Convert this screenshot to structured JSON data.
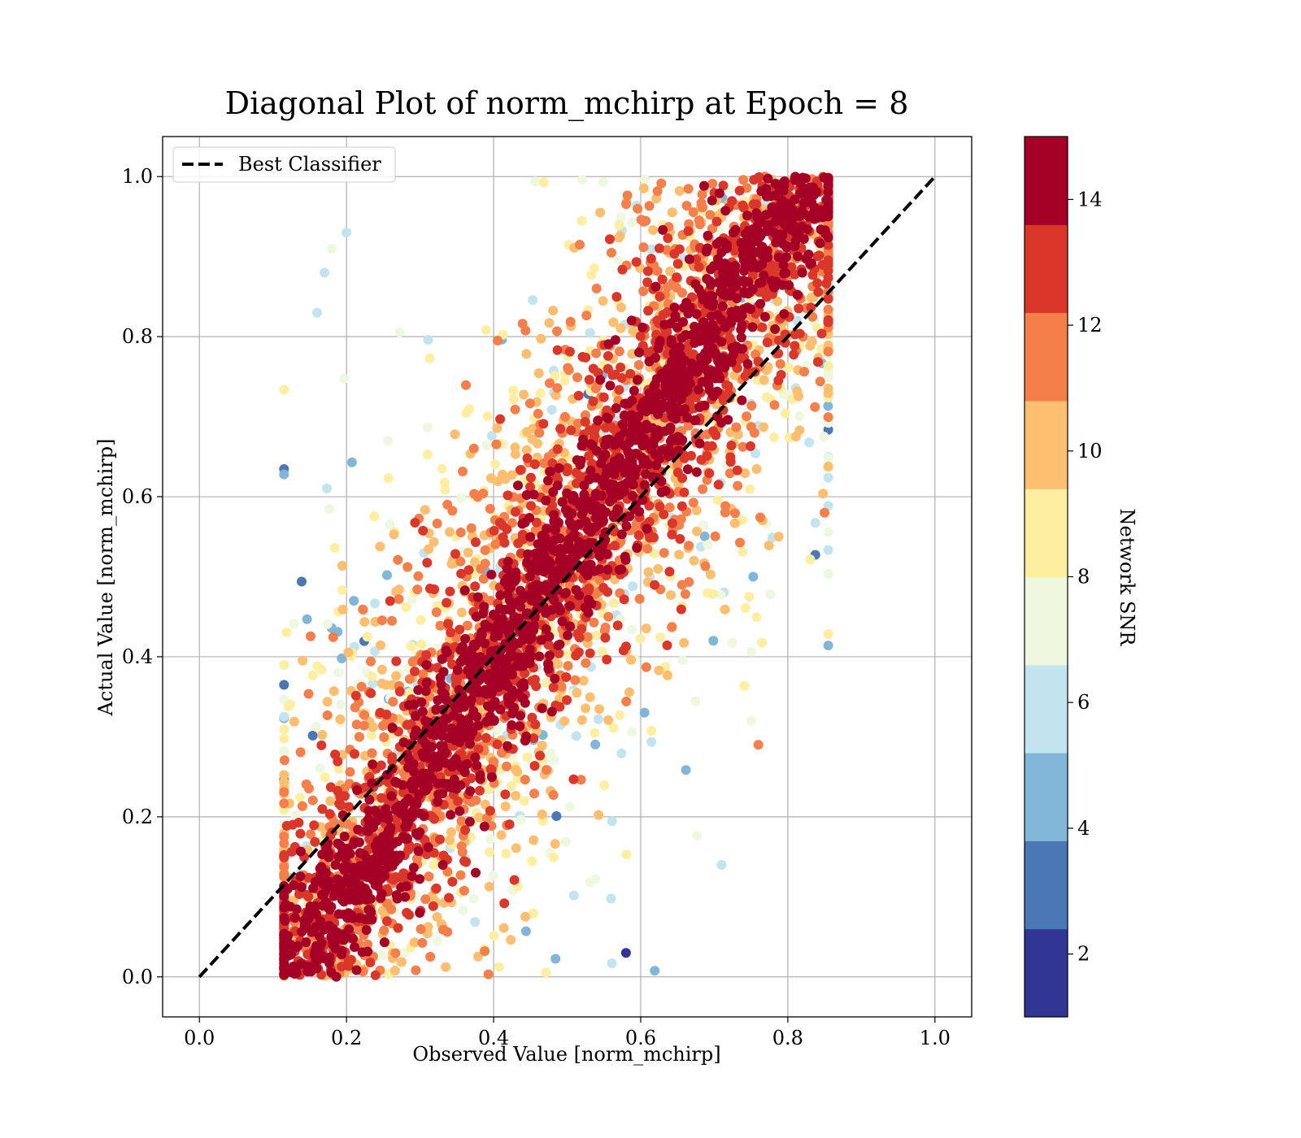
{
  "chart_data": {
    "type": "scatter",
    "title": "Diagonal Plot of norm_mchirp at Epoch = 8",
    "xlabel": "Observed Value [norm_mchirp]",
    "ylabel": "Actual Value [norm_mchirp]",
    "xlim": [
      -0.05,
      1.05
    ],
    "ylim": [
      -0.05,
      1.05
    ],
    "xticks": [
      0.0,
      0.2,
      0.4,
      0.6,
      0.8,
      1.0
    ],
    "yticks": [
      0.0,
      0.2,
      0.4,
      0.6,
      0.8,
      1.0
    ],
    "xtick_labels": [
      "0.0",
      "0.2",
      "0.4",
      "0.6",
      "0.8",
      "1.0"
    ],
    "ytick_labels": [
      "0.0",
      "0.2",
      "0.4",
      "0.6",
      "0.8",
      "1.0"
    ],
    "grid": true,
    "legend": {
      "position": "top-left",
      "entries": [
        "Best Classifier"
      ]
    },
    "reference_line": {
      "name": "Best Classifier",
      "style": "dashed",
      "color": "#000000",
      "x": [
        0.0,
        1.0
      ],
      "y": [
        0.0,
        1.0
      ]
    },
    "colorbar": {
      "label": "Network SNR",
      "range": [
        1,
        15
      ],
      "ticks": [
        2,
        4,
        6,
        8,
        10,
        12,
        14
      ],
      "tick_labels": [
        "2",
        "4",
        "6",
        "8",
        "10",
        "12",
        "14"
      ],
      "bins": 10,
      "colors": [
        "#313695",
        "#4a78b6",
        "#82b6d8",
        "#c1e4ee",
        "#edf8df",
        "#feeea2",
        "#fdbe6f",
        "#f57f4b",
        "#da372a",
        "#a50026"
      ]
    },
    "series": {
      "name": "samples",
      "color_variable": "Network SNR",
      "description": "Dense cloud of points around the diagonal; high-SNR points (dark red) cluster tightly along y = x, lower-SNR points spread farther in a band roughly |y - x| up to 0.4.",
      "x_range": [
        0.12,
        0.85
      ],
      "y_range": [
        0.0,
        1.0
      ],
      "sample_points": [
        {
          "x": 0.16,
          "y": 0.83,
          "snr": 5.5
        },
        {
          "x": 0.17,
          "y": 0.88,
          "snr": 6.0
        },
        {
          "x": 0.18,
          "y": 0.91,
          "snr": 7.5
        },
        {
          "x": 0.2,
          "y": 0.93,
          "snr": 6.5
        },
        {
          "x": 0.76,
          "y": 0.29,
          "snr": 11.5
        },
        {
          "x": 0.85,
          "y": 0.58,
          "snr": 11.5
        },
        {
          "x": 0.71,
          "y": 0.14,
          "snr": 6.0
        },
        {
          "x": 0.12,
          "y": 0.11,
          "snr": 14.5
        },
        {
          "x": 0.58,
          "y": 0.03,
          "snr": 2.0
        }
      ]
    }
  }
}
